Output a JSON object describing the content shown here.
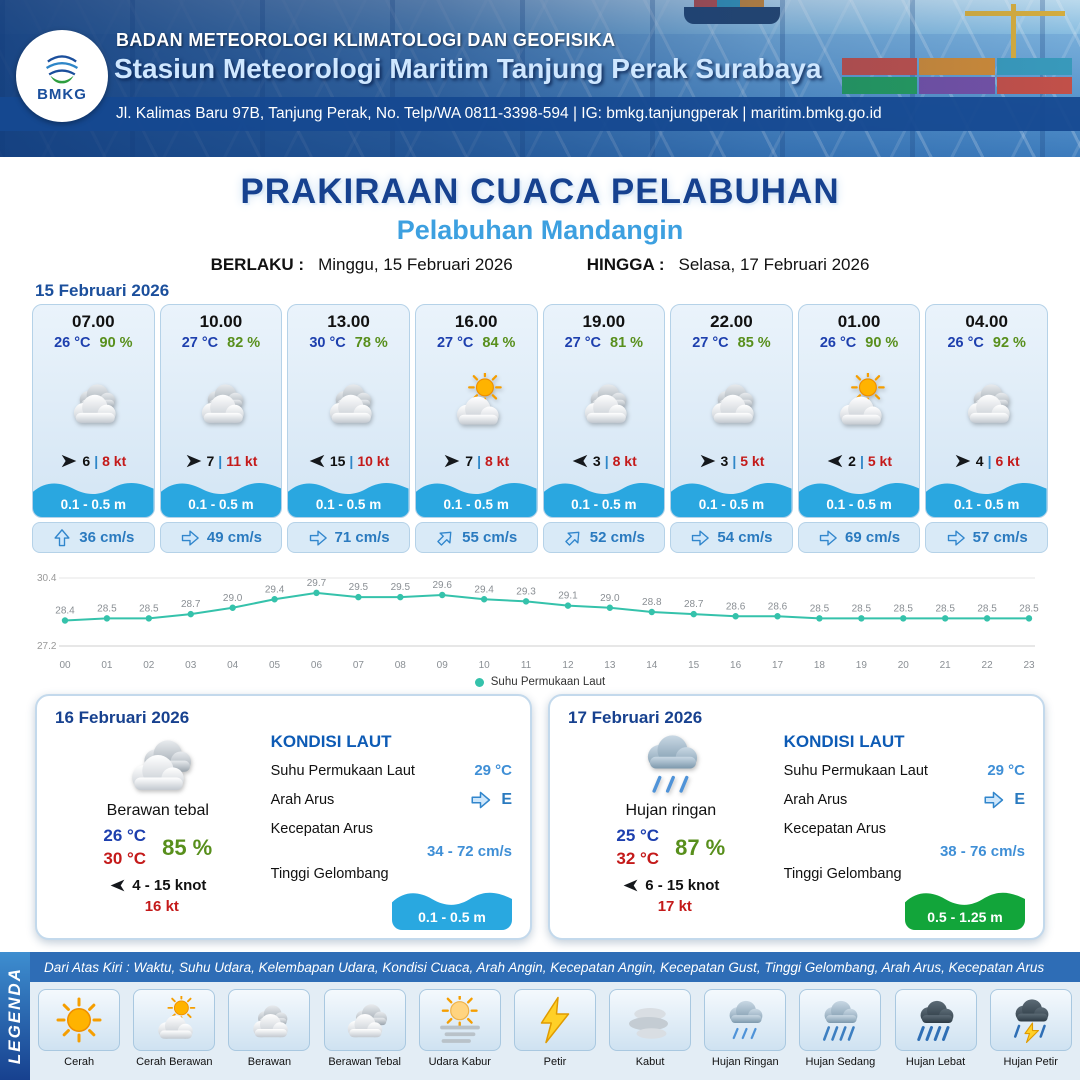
{
  "colors": {
    "header_blue": "#17488f",
    "title_blue": "#16418f",
    "subtitle_blue": "#3da0e0",
    "temp_blue": "#1d3fae",
    "humidity_green": "#588f1c",
    "gust_red": "#c41a1a",
    "wave_blue": "#29a8e0",
    "wave_green": "#12a53a",
    "chart_teal": "#35c2ab"
  },
  "header": {
    "logo": "BMKG",
    "agency": "BADAN METEOROLOGI KLIMATOLOGI DAN GEOFISIKA",
    "station": "Stasiun Meteorologi Maritim Tanjung Perak Surabaya",
    "address": "Jl. Kalimas Baru 97B, Tanjung Perak, No. Telp/WA 0811-3398-594 | IG: bmkg.tanjungperak | maritim.bmkg.go.id"
  },
  "title": {
    "main": "PRAKIRAAN CUACA PELABUHAN",
    "port": "Pelabuhan Mandangin",
    "berlaku_label": "BERLAKU :",
    "berlaku": "Minggu, 15 Februari 2026",
    "hingga_label": "HINGGA :",
    "hingga": "Selasa, 17 Februari 2026"
  },
  "forecast_date": "15 Februari 2026",
  "labels": {
    "wind_sep": "|"
  },
  "hourly": [
    {
      "time": "07.00",
      "temp": "26 °C",
      "rh": "90 %",
      "icon": "berawan",
      "wind_dir": "right",
      "wind_speed": "6",
      "gust": "8 kt",
      "wave": "0.1 - 0.5 m",
      "current_dir": "up",
      "current": "36 cm/s"
    },
    {
      "time": "10.00",
      "temp": "27 °C",
      "rh": "82 %",
      "icon": "berawan",
      "wind_dir": "right",
      "wind_speed": "7",
      "gust": "11 kt",
      "wave": "0.1 - 0.5 m",
      "current_dir": "right",
      "current": "49 cm/s"
    },
    {
      "time": "13.00",
      "temp": "30 °C",
      "rh": "78 %",
      "icon": "berawan",
      "wind_dir": "left",
      "wind_speed": "15",
      "gust": "10 kt",
      "wave": "0.1 - 0.5 m",
      "current_dir": "right",
      "current": "71 cm/s"
    },
    {
      "time": "16.00",
      "temp": "27 °C",
      "rh": "84 %",
      "icon": "cerah-berawan",
      "wind_dir": "right",
      "wind_speed": "7",
      "gust": "8 kt",
      "wave": "0.1 - 0.5 m",
      "current_dir": "up-right",
      "current": "55 cm/s"
    },
    {
      "time": "19.00",
      "temp": "27 °C",
      "rh": "81 %",
      "icon": "berawan",
      "wind_dir": "left",
      "wind_speed": "3",
      "gust": "8 kt",
      "wave": "0.1 - 0.5 m",
      "current_dir": "up-right",
      "current": "52 cm/s"
    },
    {
      "time": "22.00",
      "temp": "27 °C",
      "rh": "85 %",
      "icon": "berawan",
      "wind_dir": "right",
      "wind_speed": "3",
      "gust": "5 kt",
      "wave": "0.1 - 0.5 m",
      "current_dir": "right",
      "current": "54 cm/s"
    },
    {
      "time": "01.00",
      "temp": "26 °C",
      "rh": "90 %",
      "icon": "cerah-berawan",
      "wind_dir": "left",
      "wind_speed": "2",
      "gust": "5 kt",
      "wave": "0.1 - 0.5 m",
      "current_dir": "right",
      "current": "69 cm/s"
    },
    {
      "time": "04.00",
      "temp": "26 °C",
      "rh": "92 %",
      "icon": "berawan",
      "wind_dir": "right",
      "wind_speed": "4",
      "gust": "6 kt",
      "wave": "0.1 - 0.5 m",
      "current_dir": "right",
      "current": "57 cm/s"
    }
  ],
  "chart_data": {
    "type": "line",
    "title": "",
    "xlabel": "",
    "ylabel": "",
    "x": [
      "00",
      "01",
      "02",
      "03",
      "04",
      "05",
      "06",
      "07",
      "08",
      "09",
      "10",
      "11",
      "12",
      "13",
      "14",
      "15",
      "16",
      "17",
      "18",
      "19",
      "20",
      "21",
      "22",
      "23"
    ],
    "series": [
      {
        "name": "Suhu Permukaan Laut",
        "values": [
          28.4,
          28.5,
          28.5,
          28.7,
          29.0,
          29.4,
          29.7,
          29.5,
          29.5,
          29.6,
          29.4,
          29.3,
          29.1,
          29.0,
          28.8,
          28.7,
          28.6,
          28.6,
          28.5,
          28.5,
          28.5,
          28.5,
          28.5,
          28.5
        ]
      }
    ],
    "ylim": [
      27.2,
      30.4
    ],
    "y_ticks": [
      27.2,
      30.4
    ],
    "line_color": "#35c2ab",
    "grid": false,
    "legend_position": "bottom"
  },
  "days": [
    {
      "date": "16 Februari 2026",
      "icon": "berawan-tebal",
      "condition": "Berawan tebal",
      "temp_min": "26 °C",
      "temp_max": "30 °C",
      "rh": "85 %",
      "wind_dir": "left",
      "wind": "4  - 15 knot",
      "gust": "16 kt",
      "sea": {
        "title": "KONDISI LAUT",
        "sst_label": "Suhu Permukaan Laut",
        "sst": "29 °C",
        "current_dir_label": "Arah Arus",
        "current_dir": "E",
        "current_label": "Kecepatan Arus",
        "current": "34  - 72 cm/s",
        "wave_label": "Tinggi Gelombang",
        "wave": "0.1 - 0.5 m",
        "wave_color": "blue"
      }
    },
    {
      "date": "17 Februari 2026",
      "icon": "hujan-ringan",
      "condition": "Hujan ringan",
      "temp_min": "25 °C",
      "temp_max": "32 °C",
      "rh": "87 %",
      "wind_dir": "left",
      "wind": "6  - 15 knot",
      "gust": "17 kt",
      "sea": {
        "title": "KONDISI LAUT",
        "sst_label": "Suhu Permukaan Laut",
        "sst": "29 °C",
        "current_dir_label": "Arah Arus",
        "current_dir": "E",
        "current_label": "Kecepatan Arus",
        "current": "38  - 76 cm/s",
        "wave_label": "Tinggi Gelombang",
        "wave": "0.5 - 1.25 m",
        "wave_color": "green"
      }
    }
  ],
  "legend": {
    "ribbon": "LEGENDA",
    "description": "Dari Atas Kiri : Waktu, Suhu Udara, Kelembapan Udara, Kondisi Cuaca, Arah Angin, Kecepatan Angin, Kecepatan Gust, Tinggi Gelombang, Arah Arus, Kecepatan Arus",
    "items": [
      {
        "label": "Cerah",
        "icon": "cerah"
      },
      {
        "label": "Cerah Berawan",
        "icon": "cerah-berawan"
      },
      {
        "label": "Berawan",
        "icon": "berawan"
      },
      {
        "label": "Berawan Tebal",
        "icon": "berawan-tebal"
      },
      {
        "label": "Udara Kabur",
        "icon": "udara-kabur"
      },
      {
        "label": "Petir",
        "icon": "petir"
      },
      {
        "label": "Kabut",
        "icon": "kabut"
      },
      {
        "label": "Hujan Ringan",
        "icon": "hujan-ringan"
      },
      {
        "label": "Hujan Sedang",
        "icon": "hujan-sedang"
      },
      {
        "label": "Hujan Lebat",
        "icon": "hujan-lebat"
      },
      {
        "label": "Hujan Petir",
        "icon": "hujan-petir"
      }
    ]
  }
}
